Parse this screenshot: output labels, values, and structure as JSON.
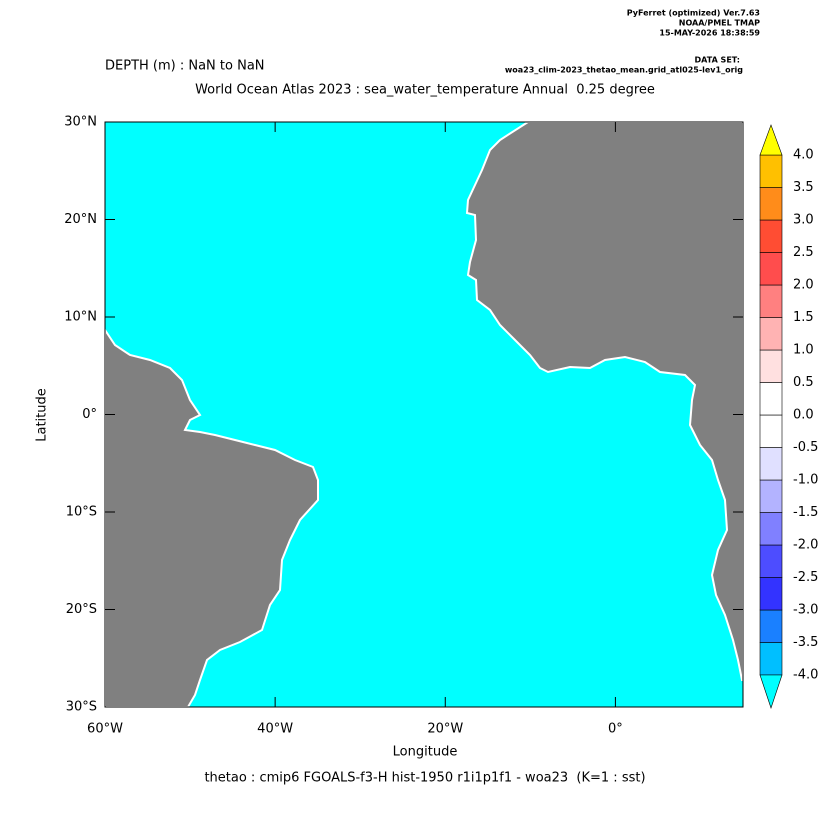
{
  "header": {
    "program": "PyFerret (optimized) Ver.7.63",
    "lab": "NOAA/PMEL TMAP",
    "timestamp": "15-MAY-2026 18:38:59",
    "dataset_label": "DATA SET:",
    "dataset": "woa23_clim-2023_thetao_mean.grid_atl025-lev1_orig"
  },
  "chart_data": {
    "type": "map",
    "title": "DEPTH (m) : NaN to NaN",
    "subtitle": "World Ocean Atlas 2023 : sea_water_temperature Annual  0.25 degree",
    "x_label": "Longitude",
    "y_label": "Latitude",
    "footer": "thetao : cmip6 FGOALS-f3-H hist-1950 r1i1p1f1 - woa23  (K=1 : sst)",
    "xlim": [
      -60,
      15
    ],
    "xticks": [
      {
        "value": -60,
        "label": "60°W"
      },
      {
        "value": -40,
        "label": "40°W"
      },
      {
        "value": -20,
        "label": "20°W"
      },
      {
        "value": 0,
        "label": "0°"
      }
    ],
    "ylim": [
      -30,
      30
    ],
    "yticks": [
      {
        "value": -30,
        "label": "30°S"
      },
      {
        "value": -20,
        "label": "20°S"
      },
      {
        "value": -10,
        "label": "10°S"
      },
      {
        "value": 0,
        "label": "0°"
      },
      {
        "value": 10,
        "label": "10°N"
      },
      {
        "value": 20,
        "label": "20°N"
      },
      {
        "value": 30,
        "label": "30°N"
      }
    ],
    "land_color": "#808080",
    "colorbar": {
      "levels": [
        {
          "value": -4,
          "label": "-4.0"
        },
        -3.5,
        {
          "value": -3,
          "label": "-3.0"
        },
        -2.5,
        {
          "value": -2,
          "label": "-2.0"
        },
        -1.5,
        {
          "value": -1,
          "label": "-1.0"
        },
        -0.5,
        {
          "value": 0,
          "label": "0.0"
        },
        0.5,
        {
          "value": 1,
          "label": "1.0"
        },
        1.5,
        {
          "value": 2,
          "label": "2.0"
        },
        2.5,
        {
          "value": 3,
          "label": "3.0"
        },
        3.5,
        {
          "value": 4,
          "label": "4.0"
        }
      ],
      "colors": [
        "#00ffff",
        "#00bfff",
        "#1a80ff",
        "#3333ff",
        "#4d4dff",
        "#8080ff",
        "#b3b3ff",
        "#e0e0ff",
        "#ffffff",
        "#ffffff",
        "#ffe0e0",
        "#ffb3b3",
        "#ff8080",
        "#ff4d4d",
        "#ff4d33",
        "#ff8c1a",
        "#ffc000",
        "#ffff00"
      ]
    }
  }
}
